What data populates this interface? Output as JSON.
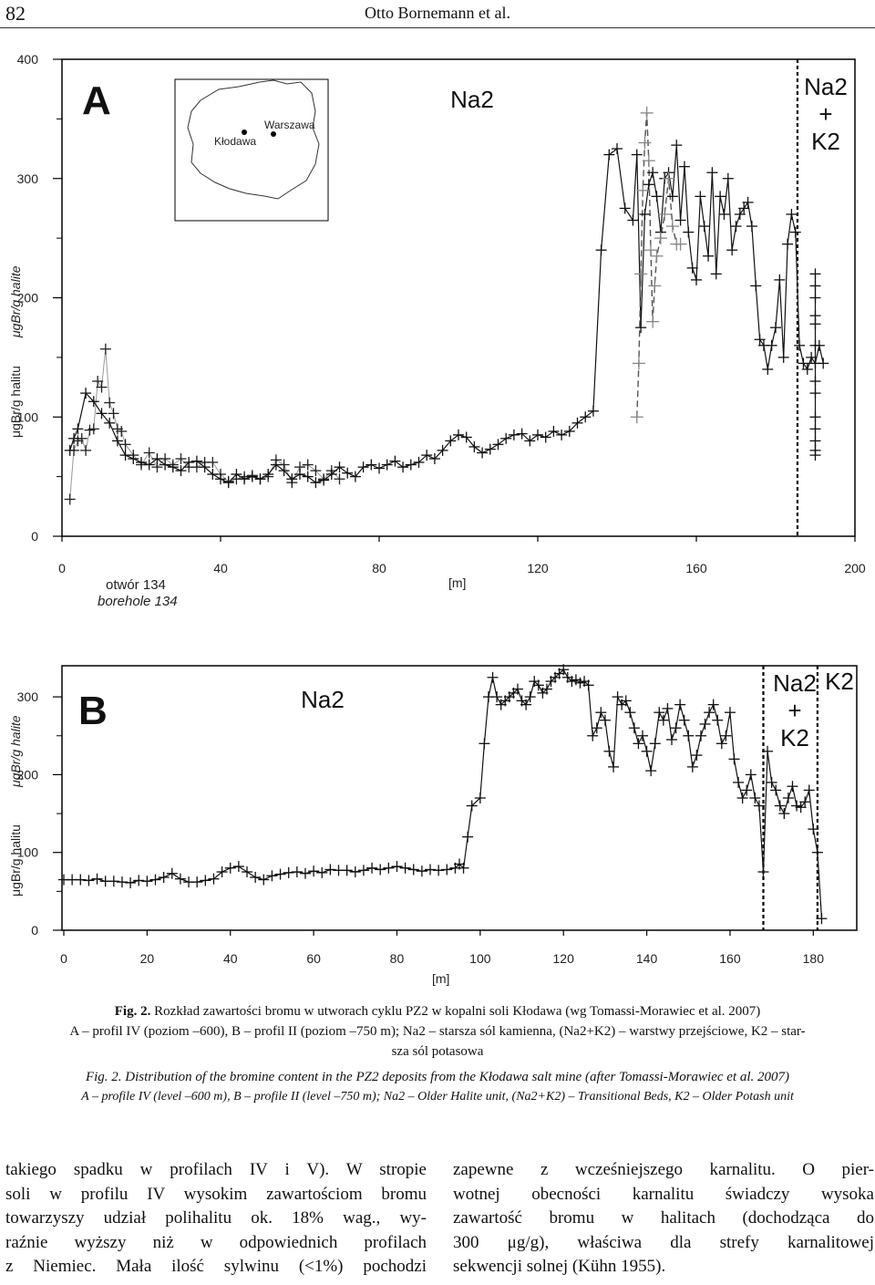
{
  "header": {
    "page_number": "82",
    "running_head": "Otto Bornemann et al."
  },
  "chart_data": [
    {
      "type": "line",
      "panel_letter": "A",
      "ylabel_pl": "μgBr/g halitu",
      "ylabel_en": "μgBr/g halite",
      "xlabel": "[m]",
      "x_origin_label_pl": "otwór 134",
      "x_origin_label_en": "borehole 134",
      "xlim": [
        0,
        200
      ],
      "ylim": [
        0,
        400
      ],
      "x_ticks": [
        0,
        40,
        80,
        120,
        160,
        200
      ],
      "y_ticks": [
        0,
        100,
        200,
        300,
        400
      ],
      "zones": [
        {
          "label": "Na2",
          "lines": [
            "Na2"
          ]
        },
        {
          "label": "Na2 + K2",
          "lines": [
            "Na2",
            "+",
            "K2"
          ]
        }
      ],
      "boundary_x": [
        185.5
      ],
      "inset_map": {
        "cities": [
          "Kłodawa",
          "Warszawa"
        ]
      },
      "series": [
        {
          "style": "grey-thin",
          "x": [
            2,
            3,
            4,
            5,
            6,
            7,
            8,
            9,
            10,
            11,
            12,
            13,
            14,
            15,
            16,
            18,
            20,
            22,
            24,
            26,
            28,
            30,
            32,
            34,
            36,
            38,
            40,
            42,
            44,
            46,
            48,
            50,
            52,
            54,
            56,
            58,
            60,
            62,
            64,
            66,
            68,
            70
          ],
          "y": [
            31,
            72,
            80,
            82,
            72,
            89,
            90,
            130,
            125,
            157,
            112,
            103,
            90,
            88,
            77,
            68,
            60,
            70,
            58,
            65,
            60,
            65,
            58,
            58,
            62,
            62,
            52,
            46,
            48,
            50,
            51,
            48,
            50,
            64,
            60,
            45,
            58,
            60,
            55,
            48,
            55,
            48
          ]
        },
        {
          "style": "dark",
          "x": [
            2,
            3,
            4,
            6,
            8,
            10,
            12,
            14,
            16,
            18,
            20,
            22,
            24,
            26,
            28,
            30,
            32,
            34,
            36,
            38,
            40,
            42,
            44,
            46,
            48,
            50,
            52,
            54,
            56,
            58,
            60,
            62,
            64,
            66,
            68,
            70,
            72,
            74,
            76,
            78,
            80,
            82,
            84,
            86,
            88,
            90,
            92,
            94,
            96,
            98,
            100,
            102,
            104,
            106,
            108,
            110,
            112,
            114,
            116,
            118,
            120,
            122,
            124,
            126,
            128,
            130,
            132,
            134,
            136,
            138,
            140,
            142,
            144,
            145,
            146,
            147,
            148,
            149,
            150,
            151,
            152,
            153,
            154,
            155,
            156,
            157,
            158,
            159,
            160,
            161,
            162,
            163,
            164,
            165,
            166,
            167,
            168,
            169,
            170,
            171,
            172,
            173,
            174,
            175,
            176,
            177,
            178,
            179,
            180,
            181,
            182,
            183,
            184,
            185,
            186,
            187,
            188,
            189,
            190,
            191,
            192
          ],
          "y": [
            72,
            82,
            90,
            120,
            113,
            103,
            95,
            80,
            68,
            65,
            62,
            60,
            65,
            60,
            58,
            55,
            62,
            63,
            58,
            52,
            48,
            45,
            52,
            48,
            50,
            48,
            52,
            60,
            55,
            48,
            52,
            50,
            45,
            47,
            52,
            58,
            53,
            50,
            58,
            60,
            57,
            60,
            63,
            58,
            60,
            62,
            68,
            65,
            72,
            80,
            85,
            83,
            75,
            70,
            73,
            77,
            82,
            85,
            86,
            80,
            85,
            83,
            88,
            85,
            88,
            95,
            100,
            105,
            240,
            320,
            325,
            275,
            265,
            320,
            175,
            270,
            295,
            305,
            285,
            255,
            300,
            305,
            285,
            328,
            265,
            310,
            255,
            225,
            215,
            285,
            260,
            235,
            305,
            220,
            285,
            270,
            300,
            240,
            260,
            270,
            275,
            280,
            260,
            210,
            165,
            160,
            140,
            160,
            175,
            215,
            150,
            245,
            270,
            255,
            160,
            145,
            140,
            150,
            145,
            160,
            145
          ]
        },
        {
          "style": "dark-dashed",
          "x": [
            145,
            145.5,
            146,
            146.5,
            147,
            147.5,
            148,
            148.5,
            149,
            149.5,
            150,
            151,
            152,
            153,
            154,
            155,
            156
          ],
          "y": [
            100,
            145,
            220,
            290,
            330,
            355,
            315,
            240,
            180,
            210,
            235,
            250,
            270,
            300,
            260,
            245,
            245
          ]
        }
      ],
      "text_block": {
        "x": 190,
        "y_values": [
          220,
          210,
          200,
          185,
          178,
          160,
          130,
          120,
          100,
          90,
          80,
          72,
          68
        ]
      }
    },
    {
      "type": "line",
      "panel_letter": "B",
      "ylabel_pl": "μgBr/g halitu",
      "ylabel_en": "μgBr/g halite",
      "xlabel": "[m]",
      "xlim": [
        0,
        190
      ],
      "ylim": [
        0,
        340
      ],
      "x_ticks": [
        0,
        20,
        40,
        60,
        80,
        100,
        120,
        140,
        160,
        180
      ],
      "y_ticks": [
        0,
        100,
        200,
        300
      ],
      "zones": [
        {
          "label": "Na2",
          "lines": [
            "Na2"
          ]
        },
        {
          "label": "Na2 + K2",
          "lines": [
            "Na2",
            "+",
            "K2"
          ]
        },
        {
          "label": "K2",
          "lines": [
            "K2"
          ]
        }
      ],
      "boundary_x": [
        168,
        181
      ],
      "series": [
        {
          "style": "dark",
          "x": [
            0,
            2,
            4,
            6,
            8,
            10,
            12,
            14,
            16,
            18,
            20,
            22,
            24,
            26,
            28,
            30,
            32,
            34,
            36,
            38,
            40,
            42,
            44,
            46,
            48,
            50,
            52,
            54,
            56,
            58,
            60,
            62,
            64,
            66,
            68,
            70,
            72,
            74,
            76,
            78,
            80,
            82,
            84,
            86,
            88,
            90,
            92,
            94,
            95,
            96,
            97,
            98,
            100,
            101,
            102,
            103,
            104,
            105,
            106,
            107,
            108,
            109,
            110,
            111,
            112,
            113,
            114,
            115,
            116,
            117,
            118,
            119,
            120,
            121,
            122,
            123,
            124,
            125,
            126,
            127,
            128,
            129,
            130,
            131,
            132,
            133,
            134,
            135,
            136,
            137,
            138,
            139,
            140,
            141,
            142,
            143,
            144,
            145,
            146,
            147,
            148,
            149,
            150,
            151,
            152,
            153,
            154,
            155,
            156,
            157,
            158,
            159,
            160,
            161,
            162,
            163,
            164,
            165,
            166,
            167,
            168,
            169,
            170,
            171,
            172,
            173,
            174,
            175,
            176,
            177,
            178,
            179,
            180,
            181,
            182
          ],
          "y": [
            65,
            65,
            65,
            64,
            66,
            63,
            63,
            62,
            61,
            64,
            63,
            65,
            68,
            73,
            66,
            62,
            62,
            64,
            66,
            75,
            80,
            82,
            75,
            68,
            65,
            70,
            72,
            74,
            75,
            73,
            76,
            74,
            78,
            77,
            77,
            75,
            77,
            80,
            78,
            80,
            82,
            80,
            78,
            76,
            78,
            77,
            78,
            80,
            85,
            80,
            120,
            160,
            170,
            240,
            300,
            325,
            300,
            290,
            295,
            300,
            305,
            310,
            295,
            290,
            300,
            320,
            315,
            305,
            310,
            320,
            325,
            330,
            335,
            325,
            320,
            322,
            318,
            320,
            315,
            250,
            260,
            280,
            270,
            230,
            210,
            300,
            290,
            295,
            280,
            260,
            240,
            250,
            230,
            205,
            240,
            280,
            270,
            285,
            245,
            260,
            290,
            270,
            250,
            210,
            225,
            250,
            265,
            280,
            290,
            270,
            240,
            250,
            280,
            220,
            190,
            170,
            180,
            200,
            170,
            160,
            75,
            230,
            190,
            180,
            160,
            150,
            170,
            185,
            160,
            158,
            165,
            180,
            130,
            100,
            15
          ]
        }
      ]
    }
  ],
  "caption": {
    "pl_title": "Fig. 2.",
    "pl_text": "Rozkład zawartości bromu w utworach cyklu PZ2 w kopalni soli Kłodawa (wg Tomassi-Morawiec et al. 2007)",
    "pl_desc_line1": "A – profil IV (poziom –600), B – profil II (poziom –750 m); Na2 – starsza sól kamienna, (Na2+K2) – warstwy przejściowe, K2 – star-",
    "pl_desc_line2": "sza sól potasowa",
    "en_title": "Fig. 2.",
    "en_text": "Distribution of the bromine content in the PZ2 deposits from the Kłodawa salt mine (after Tomassi-Morawiec et al. 2007)",
    "en_desc": "A – profile IV (level –600 m), B – profile II (level –750 m); Na2 – Older Halite unit, (Na2+K2) – Transitional Beds, K2 – Older Potash unit"
  },
  "body_text": {
    "left": [
      "takiego spadku w profilach IV i V). W stropie",
      "soli w profilu IV wysokim zawartościom bromu",
      "towarzyszy udział polihalitu ok. 18% wag., wy-",
      "raźnie wyższy niż w odpowiednich profilach",
      "z Niemiec. Mała ilość sylwinu (<1%) pochodzi"
    ],
    "right": [
      "zapewne z wcześniejszego karnalitu. O pier-",
      "wotnej obecności karnalitu świadczy wysoka",
      "zawartość bromu w halitach (dochodząca do",
      "300 μg/g), właściwa dla strefy karnalitowej",
      "sekwencji solnej (Kühn 1955)."
    ]
  }
}
